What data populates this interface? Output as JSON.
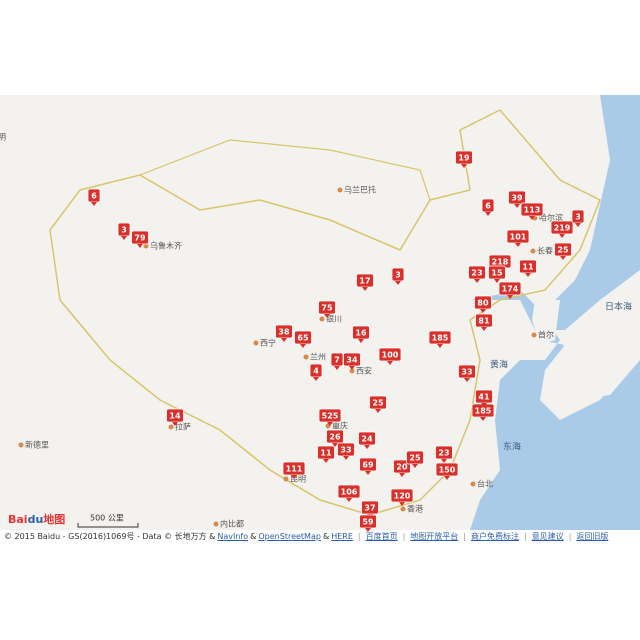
{
  "map": {
    "places": [
      "乌兰巴托",
      "乌鲁木齐",
      "哈尔滨",
      "长春",
      "银川",
      "西宁",
      "兰州",
      "西安",
      "拉萨",
      "新德里",
      "重庆",
      "昆明",
      "首尔",
      "台北",
      "内比都",
      "香港",
      "明"
    ],
    "seas": [
      "黄海",
      "东海",
      "日本海"
    ],
    "markers": [
      19,
      6,
      3,
      79,
      6,
      39,
      113,
      219,
      3,
      101,
      25,
      11,
      218,
      23,
      15,
      174,
      80,
      3,
      17,
      75,
      16,
      38,
      65,
      7,
      34,
      4,
      100,
      185,
      81,
      33,
      25,
      14,
      525,
      26,
      24,
      11,
      33,
      69,
      20,
      25,
      23,
      150,
      111,
      106,
      37,
      120,
      59,
      185,
      41
    ],
    "scale": "500 公里",
    "logo": {
      "a": "Bai",
      "b": "du",
      "c": "地图"
    }
  },
  "footer": {
    "copyright": "© 2015 Baidu - GS(2016)1069号 - Data © 长地万方 &",
    "links": [
      "NavInfo",
      "OpenStreetMap",
      "HERE"
    ],
    "amp": "&",
    "nav": [
      "百度首页",
      "地图开放平台",
      "商户免费标注",
      "意见建议",
      "返回旧版"
    ]
  }
}
